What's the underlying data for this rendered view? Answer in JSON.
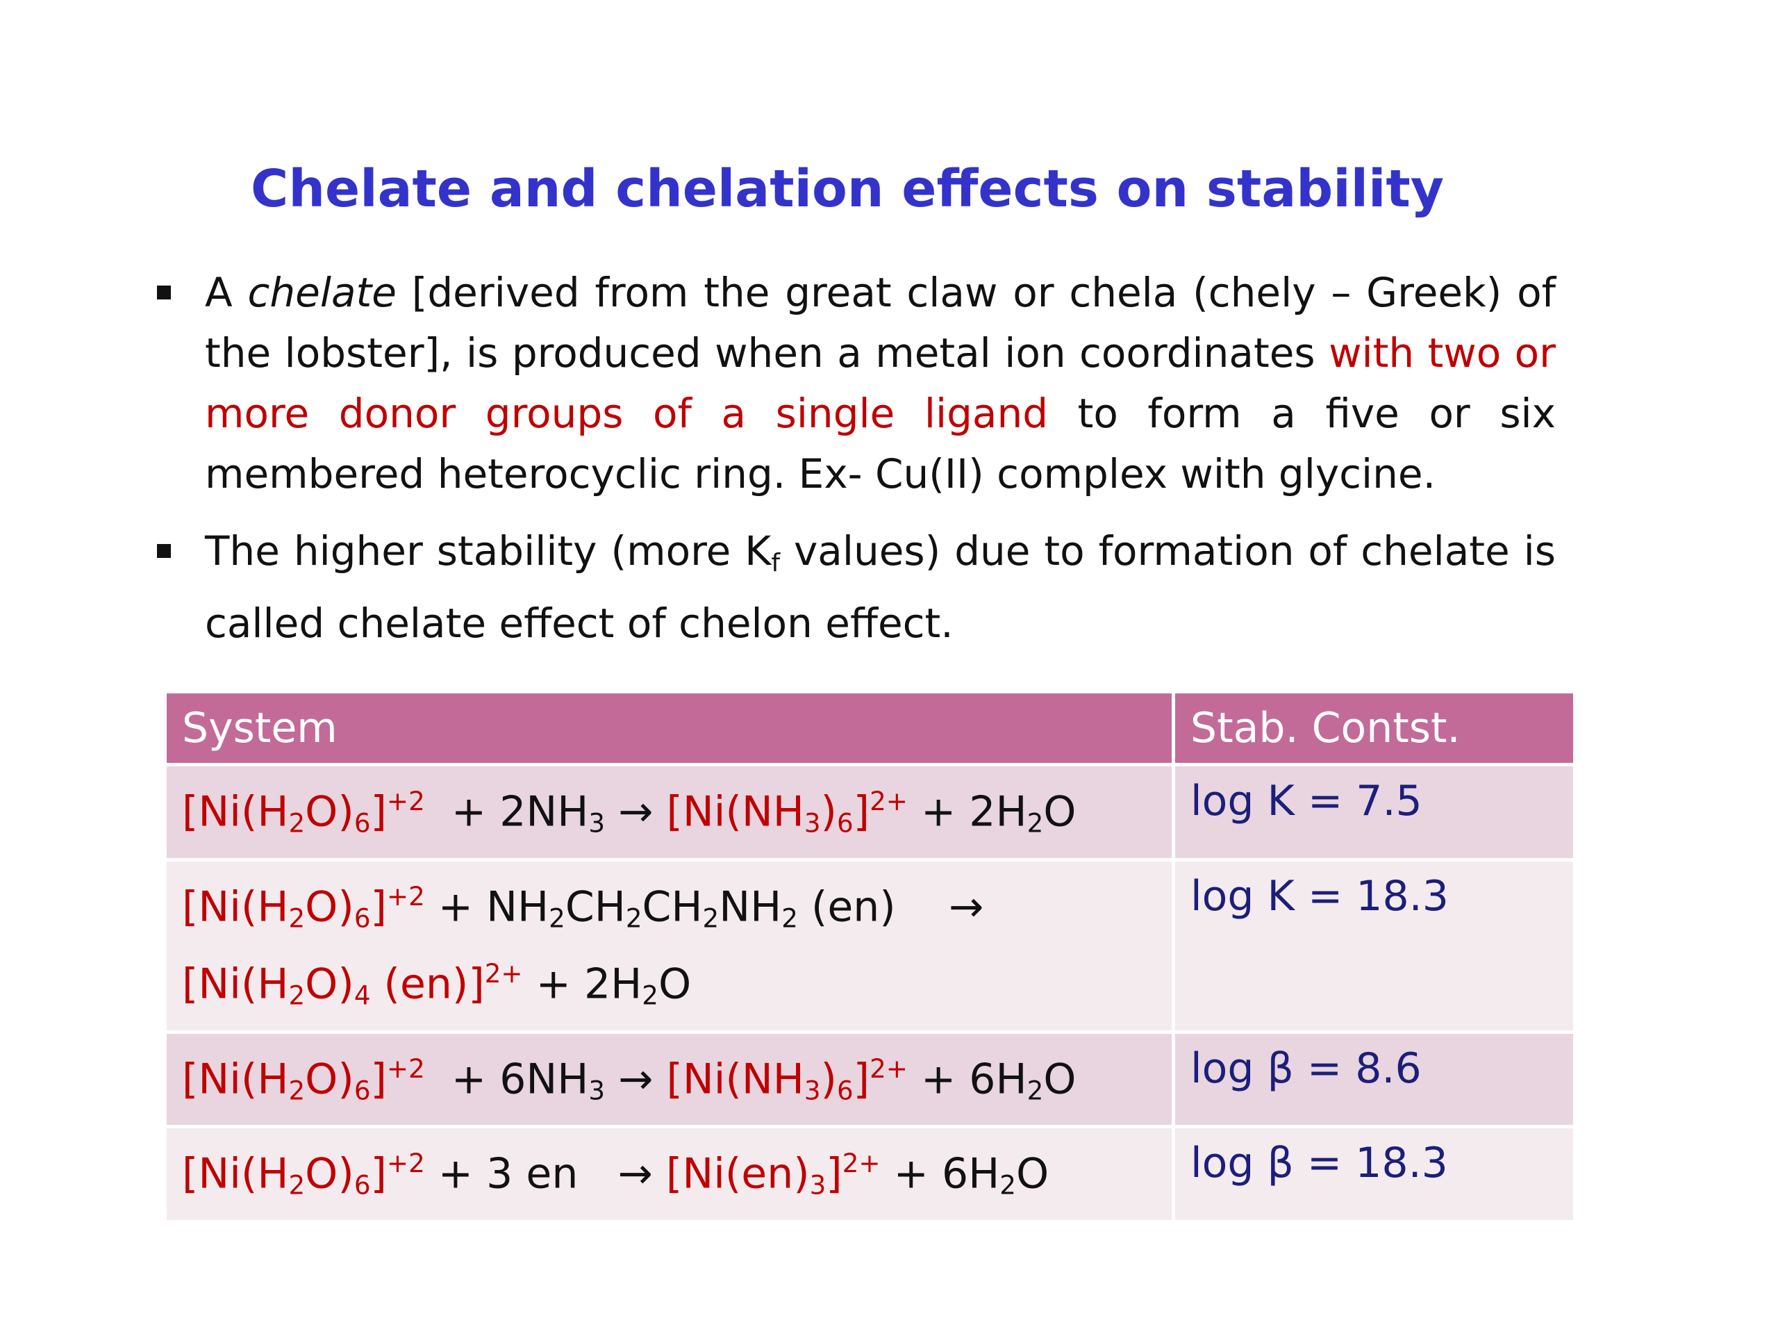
{
  "title": "Chelate and chelation effects on stability",
  "bullets": [
    {
      "pre": "A ",
      "term": "chelate",
      "mid": " [derived from the great claw or chela (chely – Greek) of the lobster], is produced when a metal ion coordinates ",
      "highlight": "with two or more donor groups of a single ligand",
      "post": " to form a five or six membered heterocyclic ring. Ex- Cu(II) complex with glycine."
    },
    {
      "pre": "The higher stability (more K",
      "sub": "f",
      "post": " values) due to formation of chelate is called chelate effect of chelon effect."
    }
  ],
  "table": {
    "headers": [
      "System",
      "Stab. Contst."
    ],
    "rows": [
      {
        "system": [
          {
            "t": "[Ni(H",
            "c": "red"
          },
          {
            "t": "2",
            "c": "red",
            "s": "sub"
          },
          {
            "t": "O)",
            "c": "red"
          },
          {
            "t": "6",
            "c": "red",
            "s": "sub"
          },
          {
            "t": "]",
            "c": "red"
          },
          {
            "t": "+2",
            "c": "red",
            "s": "sup"
          },
          {
            "t": "  + 2NH"
          },
          {
            "t": "3",
            "s": "sub"
          },
          {
            "t": " → "
          },
          {
            "t": "[Ni(NH",
            "c": "red"
          },
          {
            "t": "3",
            "c": "red",
            "s": "sub"
          },
          {
            "t": ")",
            "c": "red"
          },
          {
            "t": "6",
            "c": "red",
            "s": "sub"
          },
          {
            "t": "]",
            "c": "red"
          },
          {
            "t": "2+",
            "c": "red",
            "s": "sup"
          },
          {
            "t": " + 2H"
          },
          {
            "t": "2",
            "s": "sub"
          },
          {
            "t": "O"
          }
        ],
        "value": "log K = 7.5"
      },
      {
        "system": [
          {
            "t": "[Ni(H",
            "c": "red"
          },
          {
            "t": "2",
            "c": "red",
            "s": "sub"
          },
          {
            "t": "O)",
            "c": "red"
          },
          {
            "t": "6",
            "c": "red",
            "s": "sub"
          },
          {
            "t": "]",
            "c": "red"
          },
          {
            "t": "+2",
            "c": "red",
            "s": "sup"
          },
          {
            "t": " + NH"
          },
          {
            "t": "2",
            "s": "sub"
          },
          {
            "t": "CH"
          },
          {
            "t": "2",
            "s": "sub"
          },
          {
            "t": "CH"
          },
          {
            "t": "2",
            "s": "sub"
          },
          {
            "t": "NH"
          },
          {
            "t": "2",
            "s": "sub"
          },
          {
            "t": " (en)    →"
          },
          {
            "br": true
          },
          {
            "t": "[Ni(H",
            "c": "red"
          },
          {
            "t": "2",
            "c": "red",
            "s": "sub"
          },
          {
            "t": "O)",
            "c": "red"
          },
          {
            "t": "4",
            "c": "red",
            "s": "sub"
          },
          {
            "t": " (en)]",
            "c": "red"
          },
          {
            "t": "2+",
            "c": "red",
            "s": "sup"
          },
          {
            "t": " + 2H"
          },
          {
            "t": "2",
            "s": "sub"
          },
          {
            "t": "O"
          }
        ],
        "value": "log K = 18.3"
      },
      {
        "system": [
          {
            "t": "[Ni(H",
            "c": "red"
          },
          {
            "t": "2",
            "c": "red",
            "s": "sub"
          },
          {
            "t": "O)",
            "c": "red"
          },
          {
            "t": "6",
            "c": "red",
            "s": "sub"
          },
          {
            "t": "]",
            "c": "red"
          },
          {
            "t": "+2",
            "c": "red",
            "s": "sup"
          },
          {
            "t": "  + 6NH"
          },
          {
            "t": "3",
            "s": "sub"
          },
          {
            "t": " → "
          },
          {
            "t": "[Ni(NH",
            "c": "red"
          },
          {
            "t": "3",
            "c": "red",
            "s": "sub"
          },
          {
            "t": ")",
            "c": "red"
          },
          {
            "t": "6",
            "c": "red",
            "s": "sub"
          },
          {
            "t": "]",
            "c": "red"
          },
          {
            "t": "2+",
            "c": "red",
            "s": "sup"
          },
          {
            "t": " + 6H"
          },
          {
            "t": "2",
            "s": "sub"
          },
          {
            "t": "O"
          }
        ],
        "value": "log β = 8.6"
      },
      {
        "system": [
          {
            "t": "[Ni(H",
            "c": "red"
          },
          {
            "t": "2",
            "c": "red",
            "s": "sub"
          },
          {
            "t": "O)",
            "c": "red"
          },
          {
            "t": "6",
            "c": "red",
            "s": "sub"
          },
          {
            "t": "]",
            "c": "red"
          },
          {
            "t": "+2",
            "c": "red",
            "s": "sup"
          },
          {
            "t": " + 3 en   → "
          },
          {
            "t": "[Ni(en)",
            "c": "red"
          },
          {
            "t": "3",
            "c": "red",
            "s": "sub"
          },
          {
            "t": "]",
            "c": "red"
          },
          {
            "t": "2+",
            "c": "red",
            "s": "sup"
          },
          {
            "t": " + 6H"
          },
          {
            "t": "2",
            "s": "sub"
          },
          {
            "t": "O"
          }
        ],
        "value": "log β = 18.3"
      }
    ]
  },
  "colors": {
    "title": "#3333cc",
    "highlight": "#c00000",
    "header_bg": "#c26b98",
    "row_odd": "#e8d5df",
    "row_even": "#f4ebef",
    "value_text": "#1b1f7a"
  }
}
